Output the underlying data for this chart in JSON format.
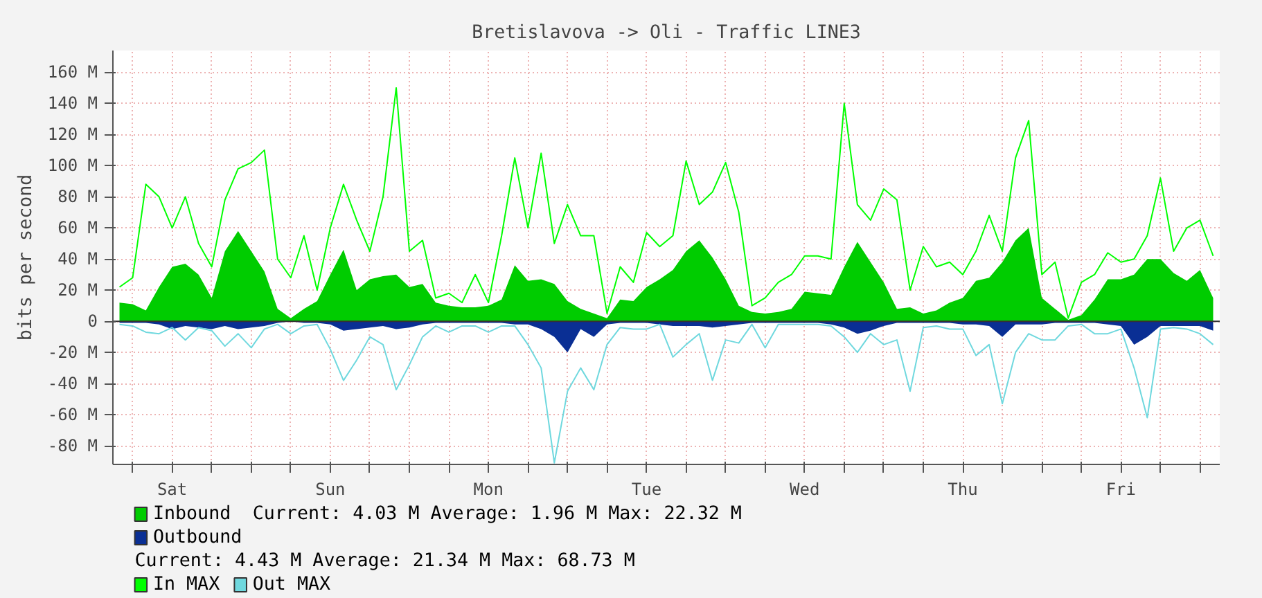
{
  "chart_data": {
    "type": "area",
    "title": "Bretislavova -> Oli - Traffic LINE3",
    "ylabel": "bits per second",
    "categories": [
      null,
      null,
      null,
      null,
      "Sat",
      null,
      null,
      null,
      null,
      null,
      null,
      null,
      null,
      null,
      null,
      null,
      "Sun",
      null,
      null,
      null,
      null,
      null,
      null,
      null,
      null,
      null,
      null,
      null,
      "Mon",
      null,
      null,
      null,
      null,
      null,
      null,
      null,
      null,
      null,
      null,
      null,
      "Tue",
      null,
      null,
      null,
      null,
      null,
      null,
      null,
      null,
      null,
      null,
      null,
      "Wed",
      null,
      null,
      null,
      null,
      null,
      null,
      null,
      null,
      null,
      null,
      null,
      "Thu",
      null,
      null,
      null,
      null,
      null,
      null,
      null,
      null,
      null,
      null,
      null,
      "Fri",
      null,
      null,
      null,
      null,
      null,
      null,
      null
    ],
    "ylim": [
      -92,
      174
    ],
    "yticks": [
      {
        "value": -80,
        "label": "-80 M"
      },
      {
        "value": -60,
        "label": "-60 M"
      },
      {
        "value": -40,
        "label": "-40 M"
      },
      {
        "value": -20,
        "label": "-20 M"
      },
      0,
      {
        "value": 20,
        "label": "20 M"
      },
      {
        "value": 40,
        "label": "40 M"
      },
      {
        "value": 60,
        "label": "60 M"
      },
      {
        "value": 80,
        "label": "80 M"
      },
      {
        "value": 100,
        "label": "100 M"
      },
      {
        "value": 120,
        "label": "120 M"
      },
      {
        "value": 140,
        "label": "140 M"
      },
      {
        "value": 160,
        "label": "160 M"
      }
    ],
    "grid": true,
    "legend": "bottom",
    "annotations": [
      "Current:    4.03 M   Average:    1.96 M   Max:   22.32 M",
      "Current:    4.43 M   Average:   21.34 M   Max:   68.73 M"
    ],
    "series": [
      {
        "name": "Inbound",
        "color": "#00cc00",
        "values": [
          12,
          11,
          7,
          22,
          35,
          37,
          30,
          15,
          45,
          58,
          45,
          32,
          8,
          2,
          8,
          13,
          30,
          46,
          20,
          27,
          29,
          30,
          22,
          24,
          12,
          10,
          9,
          9,
          10,
          14,
          36,
          26,
          27,
          24,
          13,
          8,
          5,
          2,
          14,
          13,
          22,
          27,
          33,
          45,
          52,
          41,
          27,
          10,
          6,
          5,
          6,
          8,
          19,
          18,
          17,
          35,
          51,
          38,
          25,
          8,
          9,
          5,
          7,
          12,
          15,
          26,
          28,
          38,
          52,
          60,
          15,
          8,
          1,
          4,
          14,
          27,
          27,
          30,
          40,
          40,
          31,
          26,
          33,
          15
        ]
      },
      {
        "name": "Outbound",
        "color": "#0a2f94",
        "values": [
          -1,
          -1,
          -1,
          -2,
          -5,
          -3,
          -4,
          -5,
          -3,
          -5,
          -4,
          -3,
          -1,
          0,
          -1,
          -1,
          -2,
          -6,
          -5,
          -4,
          -3,
          -5,
          -4,
          -2,
          -1,
          -1,
          -1,
          -1,
          -1,
          -1,
          -2,
          -2,
          -5,
          -10,
          -20,
          -5,
          -10,
          -2,
          -1,
          -1,
          -1,
          -2,
          -3,
          -3,
          -3,
          -4,
          -3,
          -2,
          -1,
          -1,
          -1,
          -1,
          -1,
          -1,
          -2,
          -4,
          -8,
          -6,
          -3,
          -1,
          -1,
          -1,
          -1,
          -1,
          -2,
          -2,
          -3,
          -10,
          -2,
          -2,
          -2,
          -1,
          -1,
          -1,
          -1,
          -2,
          -3,
          -15,
          -10,
          -3,
          -3,
          -3,
          -3,
          -6
        ]
      },
      {
        "name": "In MAX",
        "type": "line",
        "color": "#00ff00",
        "values": [
          22,
          28,
          88,
          80,
          60,
          80,
          50,
          35,
          78,
          98,
          102,
          110,
          40,
          28,
          55,
          20,
          60,
          88,
          65,
          45,
          80,
          150,
          45,
          52,
          15,
          18,
          12,
          30,
          12,
          55,
          105,
          60,
          108,
          50,
          75,
          55,
          55,
          5,
          35,
          25,
          57,
          48,
          55,
          103,
          75,
          83,
          102,
          70,
          10,
          15,
          25,
          30,
          42,
          42,
          40,
          140,
          75,
          65,
          85,
          78,
          20,
          48,
          35,
          38,
          30,
          45,
          68,
          45,
          105,
          129,
          30,
          38,
          2,
          25,
          30,
          44,
          38,
          40,
          55,
          92,
          45,
          60,
          65,
          42
        ]
      },
      {
        "name": "Out MAX",
        "type": "line",
        "color": "#6fd8de",
        "values": [
          -2,
          -3,
          -7,
          -8,
          -4,
          -12,
          -4,
          -6,
          -16,
          -8,
          -17,
          -5,
          -2,
          -8,
          -3,
          -2,
          -18,
          -38,
          -25,
          -10,
          -15,
          -44,
          -28,
          -10,
          -3,
          -7,
          -3,
          -3,
          -7,
          -3,
          -3,
          -15,
          -30,
          -91,
          -45,
          -30,
          -44,
          -15,
          -4,
          -5,
          -5,
          -2,
          -23,
          -15,
          -8,
          -38,
          -12,
          -14,
          -2,
          -17,
          -2,
          -2,
          -2,
          -2,
          -3,
          -10,
          -20,
          -8,
          -15,
          -12,
          -45,
          -4,
          -3,
          -5,
          -5,
          -22,
          -15,
          -53,
          -20,
          -8,
          -12,
          -12,
          -3,
          -2,
          -8,
          -8,
          -5,
          -30,
          -62,
          -5,
          -4,
          -5,
          -8,
          -15
        ]
      }
    ]
  }
}
